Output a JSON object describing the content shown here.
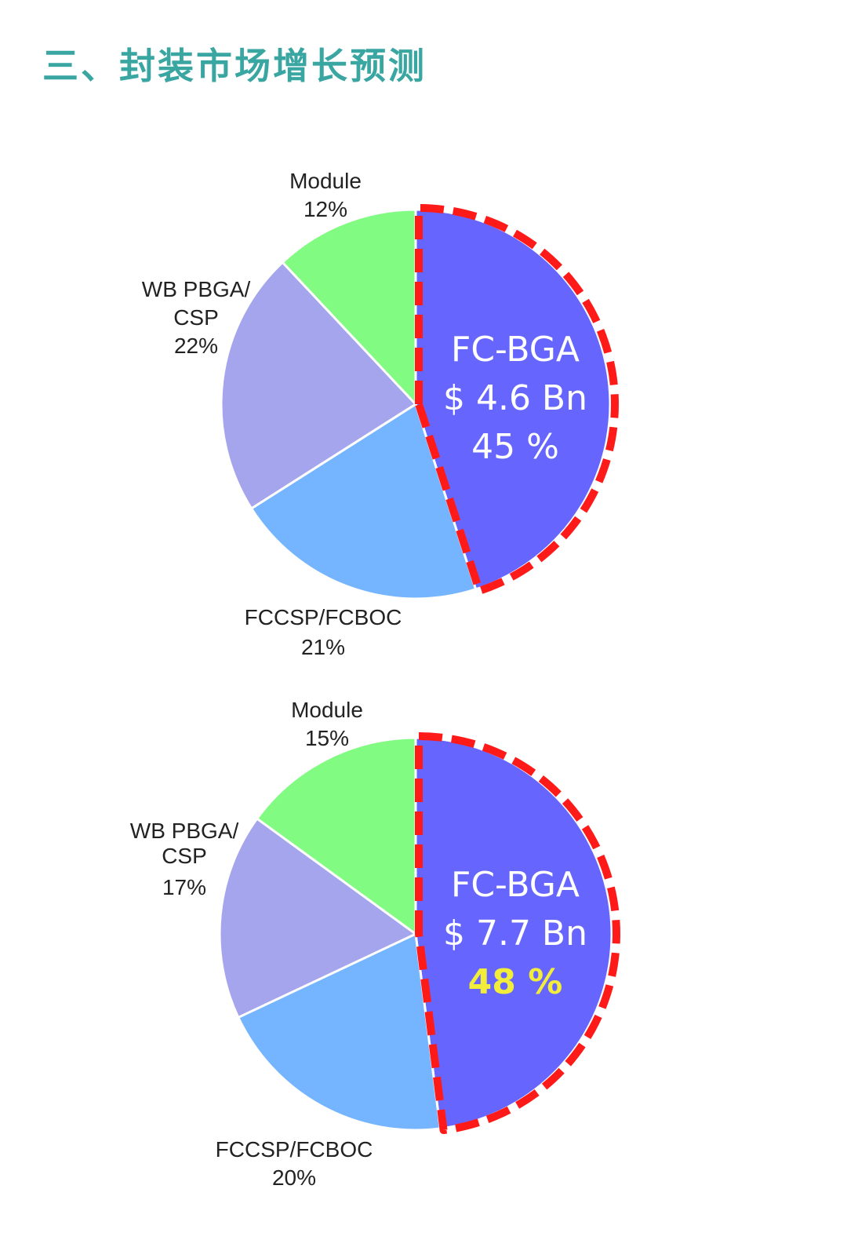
{
  "page_title": "三、封装市场增长预测",
  "chart_data": [
    {
      "type": "pie",
      "slices": [
        {
          "name": "FC-BGA",
          "value": 45,
          "color": "#6666ff",
          "highlight": true
        },
        {
          "name": "FCCSP/FCBOC",
          "value": 21,
          "color": "#75b4ff"
        },
        {
          "name": "WB PBGA/CSP",
          "value": 22,
          "color": "#a5a5ee"
        },
        {
          "name": "Module",
          "value": 12,
          "color": "#82fb82"
        }
      ],
      "labels": {
        "module_name": "Module",
        "module_pct": "12%",
        "wb_line1": "WB PBGA/",
        "wb_line2": "CSP",
        "wb_pct": "22%",
        "fccsp_name": "FCCSP/FCBOC",
        "fccsp_pct": "21%",
        "fcbga_name": "FC-BGA",
        "fcbga_value": "$ 4.6 Bn",
        "fcbga_pct": "45 %"
      },
      "highlight_border_color": "#ff1a1a"
    },
    {
      "type": "pie",
      "slices": [
        {
          "name": "FC-BGA",
          "value": 48,
          "color": "#6666ff",
          "highlight": true
        },
        {
          "name": "FCCSP/FCBOC",
          "value": 20,
          "color": "#75b4ff"
        },
        {
          "name": "WB PBGA/CSP",
          "value": 17,
          "color": "#a5a5ee"
        },
        {
          "name": "Module",
          "value": 15,
          "color": "#82fb82"
        }
      ],
      "labels": {
        "module_name": "Module",
        "module_pct": "15%",
        "wb_line1": "WB PBGA/",
        "wb_line2": "CSP",
        "wb_pct": "17%",
        "fccsp_name": "FCCSP/FCBOC",
        "fccsp_pct": "20%",
        "fcbga_name": "FC-BGA",
        "fcbga_value": "$ 7.7 Bn",
        "fcbga_pct": "48 %"
      },
      "highlight_border_color": "#ff1a1a",
      "highlight_pct_color": "#f2ec3a"
    }
  ]
}
